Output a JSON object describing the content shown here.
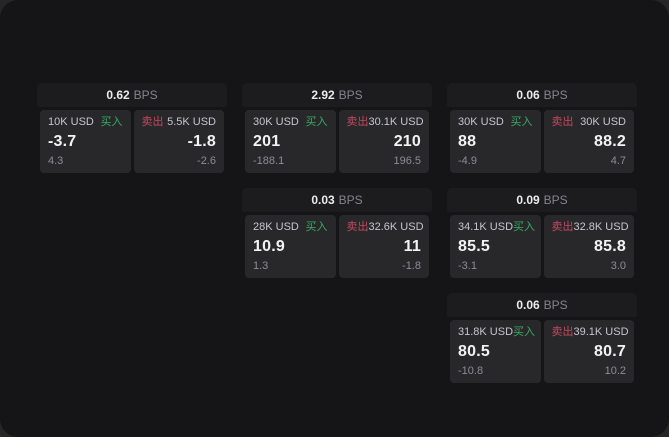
{
  "labels": {
    "bps_unit": "BPS",
    "buy": "买入",
    "sell": "卖出"
  },
  "colors": {
    "buy_green": "#3aa865",
    "sell_red": "#c4485e",
    "window_bg": "#151517",
    "card_header": "#1c1c1e",
    "panel": "#28282b"
  },
  "cards": [
    {
      "bps": "0.62",
      "buy": {
        "notional": "10K USD",
        "price": "-3.7",
        "sub": "4.3"
      },
      "sell": {
        "notional": "5.5K USD",
        "price": "-1.8",
        "sub": "-2.6"
      }
    },
    {
      "bps": "2.92",
      "buy": {
        "notional": "30K USD",
        "price": "201",
        "sub": "-188.1"
      },
      "sell": {
        "notional": "30.1K USD",
        "price": "210",
        "sub": "196.5"
      }
    },
    {
      "bps": "0.06",
      "buy": {
        "notional": "30K USD",
        "price": "88",
        "sub": "-4.9"
      },
      "sell": {
        "notional": "30K USD",
        "price": "88.2",
        "sub": "4.7"
      }
    },
    {
      "bps": "0.03",
      "buy": {
        "notional": "28K USD",
        "price": "10.9",
        "sub": "1.3"
      },
      "sell": {
        "notional": "32.6K USD",
        "price": "11",
        "sub": "-1.8"
      }
    },
    {
      "bps": "0.09",
      "buy": {
        "notional": "34.1K USD",
        "price": "85.5",
        "sub": "-3.1"
      },
      "sell": {
        "notional": "32.8K USD",
        "price": "85.8",
        "sub": "3.0"
      }
    },
    {
      "bps": "0.06",
      "buy": {
        "notional": "31.8K USD",
        "price": "80.5",
        "sub": "-10.8"
      },
      "sell": {
        "notional": "39.1K USD",
        "price": "80.7",
        "sub": "10.2"
      }
    }
  ]
}
